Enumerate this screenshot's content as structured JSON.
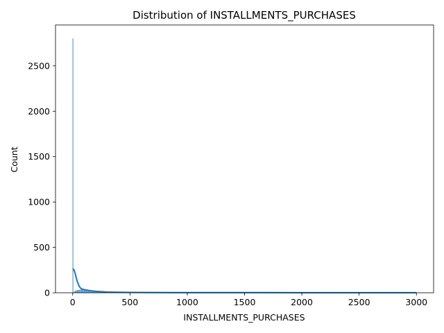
{
  "chart_data": {
    "type": "histogram",
    "title": "Distribution of INSTALLMENTS_PURCHASES",
    "xlabel": "INSTALLMENTS_PURCHASES",
    "ylabel": "Count",
    "xlim": [
      -150,
      3150
    ],
    "ylim": [
      0,
      2950
    ],
    "xticks": [
      0,
      500,
      1000,
      1500,
      2000,
      2500,
      3000
    ],
    "yticks": [
      0,
      500,
      1000,
      1500,
      2000,
      2500
    ],
    "grid": false,
    "colors": {
      "bars": "#1f77b4",
      "kde": "#1f77b4"
    },
    "bins": [
      {
        "x0": 0,
        "x1": 2,
        "count": 2800
      },
      {
        "x0": 2,
        "x1": 10,
        "count": 1
      },
      {
        "x0": 10,
        "x1": 20,
        "count": 10
      },
      {
        "x0": 20,
        "x1": 30,
        "count": 20
      },
      {
        "x0": 30,
        "x1": 40,
        "count": 25
      },
      {
        "x0": 40,
        "x1": 50,
        "count": 28
      },
      {
        "x0": 50,
        "x1": 60,
        "count": 30
      },
      {
        "x0": 60,
        "x1": 70,
        "count": 32
      },
      {
        "x0": 70,
        "x1": 80,
        "count": 34
      },
      {
        "x0": 80,
        "x1": 90,
        "count": 32
      },
      {
        "x0": 90,
        "x1": 100,
        "count": 30
      },
      {
        "x0": 100,
        "x1": 110,
        "count": 28
      },
      {
        "x0": 110,
        "x1": 120,
        "count": 26
      },
      {
        "x0": 120,
        "x1": 130,
        "count": 24
      },
      {
        "x0": 130,
        "x1": 140,
        "count": 22
      },
      {
        "x0": 140,
        "x1": 150,
        "count": 20
      },
      {
        "x0": 150,
        "x1": 160,
        "count": 18
      },
      {
        "x0": 160,
        "x1": 170,
        "count": 17
      },
      {
        "x0": 170,
        "x1": 180,
        "count": 16
      },
      {
        "x0": 180,
        "x1": 190,
        "count": 15
      },
      {
        "x0": 190,
        "x1": 200,
        "count": 14
      },
      {
        "x0": 200,
        "x1": 210,
        "count": 13
      },
      {
        "x0": 210,
        "x1": 220,
        "count": 12
      },
      {
        "x0": 220,
        "x1": 230,
        "count": 11
      },
      {
        "x0": 230,
        "x1": 240,
        "count": 10
      },
      {
        "x0": 240,
        "x1": 250,
        "count": 9
      },
      {
        "x0": 250,
        "x1": 260,
        "count": 8
      },
      {
        "x0": 260,
        "x1": 270,
        "count": 7
      },
      {
        "x0": 270,
        "x1": 280,
        "count": 7
      },
      {
        "x0": 280,
        "x1": 290,
        "count": 6
      },
      {
        "x0": 290,
        "x1": 300,
        "count": 6
      }
    ],
    "kde": {
      "x": [
        0,
        10,
        20,
        30,
        40,
        50,
        60,
        70,
        80,
        100,
        130,
        160,
        200,
        250,
        300,
        400,
        500,
        700,
        1000,
        1500,
        2000,
        2500,
        3000
      ],
      "y": [
        265,
        255,
        220,
        170,
        125,
        90,
        65,
        50,
        42,
        35,
        28,
        22,
        16,
        12,
        9,
        6,
        4,
        3,
        2,
        2,
        1,
        1,
        1
      ]
    }
  }
}
